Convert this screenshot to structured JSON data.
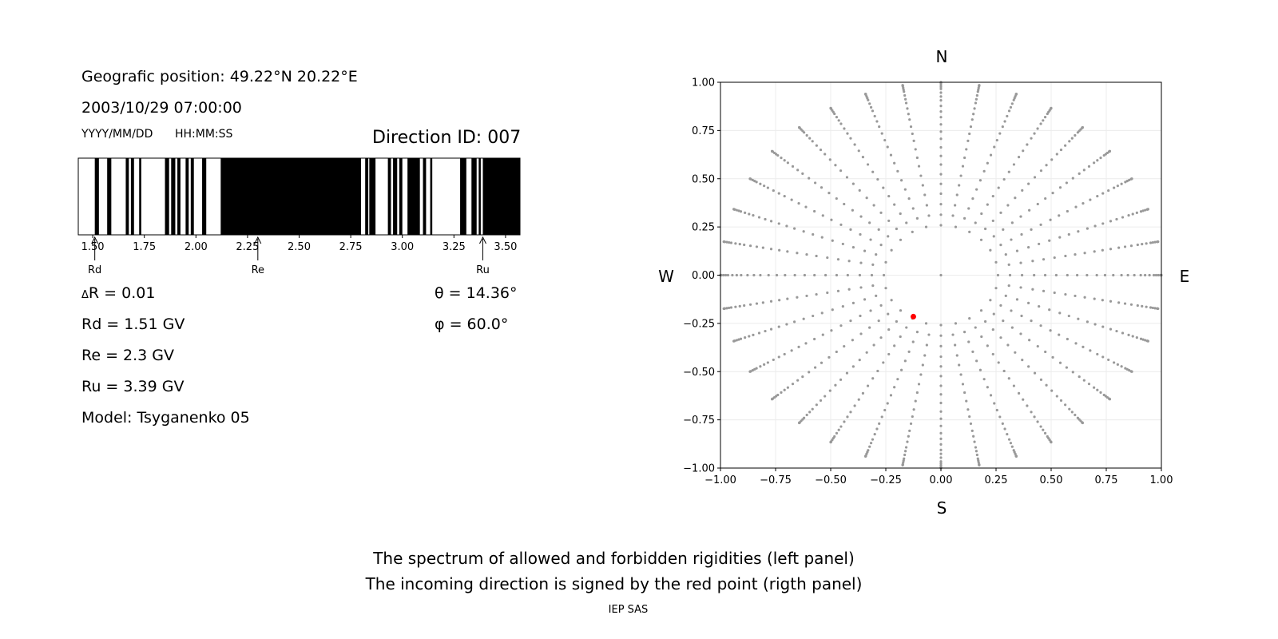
{
  "info": {
    "geo_position": "Geografic position: 49.22°N 20.22°E",
    "datetime": "2003/10/29 07:00:00",
    "date_format": "YYYY/MM/DD",
    "time_format": "HH:MM:SS",
    "direction_id": "Direction ID: 007",
    "delta_r": "R = 0.01",
    "delta_symbol": "Δ",
    "rd": "Rd = 1.51 GV",
    "re": "Re = 2.3 GV",
    "ru": "Ru = 3.39 GV",
    "model": "Model: Tsyganenko 05",
    "theta": "θ = 14.36°",
    "phi": "φ = 60.0°"
  },
  "caption": {
    "line1": "The spectrum of allowed and forbidden rigidities (left panel)",
    "line2": "The incoming direction is signed by the red point (rigth panel)",
    "footer": "IEP SAS"
  },
  "chart_data": [
    {
      "type": "bar",
      "name": "rigidity-spectrum",
      "xlim": [
        1.43,
        3.57
      ],
      "xticks": [
        "1.50",
        "1.75",
        "2.00",
        "2.25",
        "2.50",
        "2.75",
        "3.00",
        "3.25",
        "3.50"
      ],
      "forbidden_intervals": [
        [
          1.51,
          1.53
        ],
        [
          1.57,
          1.59
        ],
        [
          1.66,
          1.675
        ],
        [
          1.685,
          1.7
        ],
        [
          1.725,
          1.735
        ],
        [
          1.85,
          1.87
        ],
        [
          1.88,
          1.9
        ],
        [
          1.91,
          1.925
        ],
        [
          1.95,
          1.965
        ],
        [
          1.975,
          1.99
        ],
        [
          2.03,
          2.05
        ],
        [
          2.12,
          2.8
        ],
        [
          2.82,
          2.835
        ],
        [
          2.84,
          2.87
        ],
        [
          2.93,
          2.945
        ],
        [
          2.955,
          2.975
        ],
        [
          2.985,
          3.0
        ],
        [
          3.025,
          3.085
        ],
        [
          3.1,
          3.115
        ],
        [
          3.135,
          3.145
        ],
        [
          3.28,
          3.31
        ],
        [
          3.335,
          3.36
        ],
        [
          3.37,
          3.38
        ],
        [
          3.39,
          3.57
        ]
      ],
      "markers": [
        {
          "label": "Rd",
          "value": 1.51
        },
        {
          "label": "Re",
          "value": 2.3
        },
        {
          "label": "Ru",
          "value": 3.39
        }
      ],
      "colors": {
        "forbidden": "#000000",
        "allowed": "#ffffff"
      }
    },
    {
      "type": "scatter",
      "name": "direction-map",
      "xlim": [
        -1.0,
        1.0
      ],
      "ylim": [
        -1.0,
        1.0
      ],
      "xticks": [
        "−1.00",
        "−0.75",
        "−0.50",
        "−0.25",
        "0.00",
        "0.25",
        "0.50",
        "0.75",
        "1.00"
      ],
      "yticks": [
        "1.00",
        "0.75",
        "0.50",
        "0.25",
        "0.00",
        "−0.25",
        "−0.50",
        "−0.75",
        "−1.00"
      ],
      "directions": {
        "north": "N",
        "south": "S",
        "west": "W",
        "east": "E"
      },
      "grid": true,
      "grid_directions": {
        "theta_rings_deg": [
          15,
          25,
          35,
          45,
          55,
          65,
          75,
          85,
          90
        ],
        "rays_every_deg": 10,
        "inner_ring_every_deg": 15,
        "ray_points_per_ring": 3
      },
      "highlight": {
        "x": -0.125,
        "y": -0.215,
        "color": "#ff0000"
      },
      "colors": {
        "grid_points": "#999999"
      }
    }
  ]
}
